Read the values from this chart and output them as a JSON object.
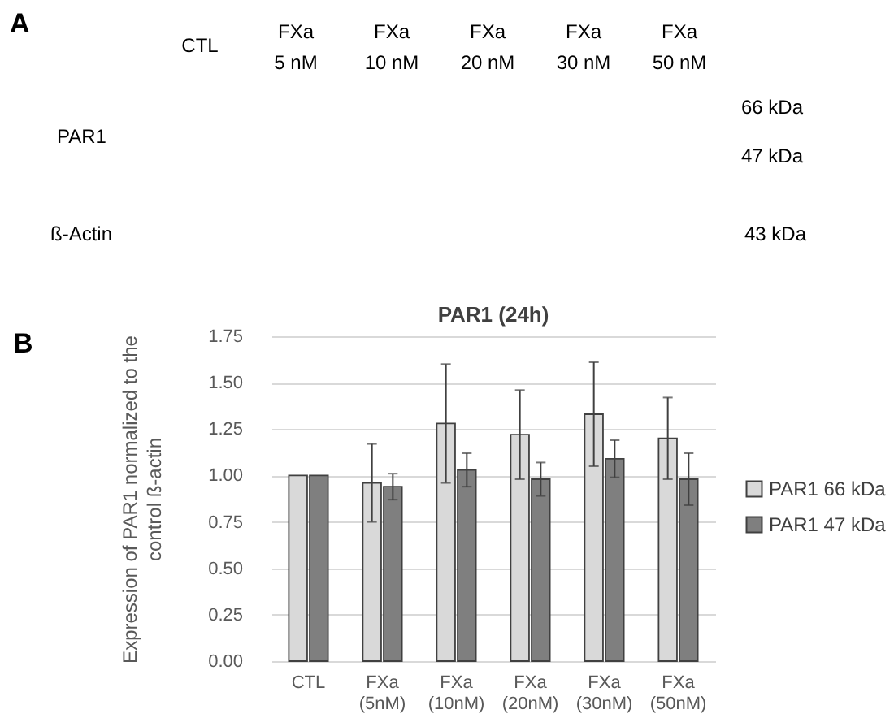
{
  "chart_data": [
    {
      "type": "other",
      "title": "A",
      "categories": [
        "CTL",
        "FXa\n5 nM",
        "FXa\n10 nM",
        "FXa\n20 nM",
        "FXa\n30 nM",
        "FXa\n50 nM"
      ],
      "annotations": [
        "PAR1",
        "66 kDa",
        "47 kDa",
        "ß-Actin",
        "43 kDa"
      ]
    },
    {
      "type": "bar",
      "title": "PAR1 (24h)",
      "ylabel": "Expression of PAR1 normalized to the\ncontrol ß-actin",
      "categories": [
        "CTL",
        "FXa\n(5nM)",
        "FXa\n(10nM)",
        "FXa\n(20nM)",
        "FXa\n(30nM)",
        "FXa\n(50nM)"
      ],
      "series": [
        {
          "name": "PAR1 66 kDa",
          "color": "#d9d9d9",
          "values": [
            1.0,
            0.96,
            1.28,
            1.22,
            1.33,
            1.2
          ],
          "errors": [
            null,
            0.21,
            0.32,
            0.24,
            0.28,
            0.22
          ]
        },
        {
          "name": "PAR1 47 kDa",
          "color": "#7f7f7f",
          "values": [
            1.0,
            0.94,
            1.03,
            0.98,
            1.09,
            0.98
          ],
          "errors": [
            null,
            0.07,
            0.09,
            0.09,
            0.1,
            0.14
          ]
        }
      ],
      "ylim": [
        0,
        1.75
      ],
      "yticks": [
        {
          "value": 0,
          "label": "0.00"
        },
        {
          "value": 0.25,
          "label": "0.25"
        },
        {
          "value": 0.5,
          "label": "0.50"
        },
        {
          "value": 0.75,
          "label": "0.75"
        },
        {
          "value": 1,
          "label": "1.00"
        },
        {
          "value": 1.25,
          "label": "1.25"
        },
        {
          "value": 1.5,
          "label": "1.50"
        },
        {
          "value": 1.75,
          "label": "1.75"
        }
      ],
      "grid": "y",
      "legend": "right",
      "annotations": [
        "B"
      ]
    }
  ]
}
